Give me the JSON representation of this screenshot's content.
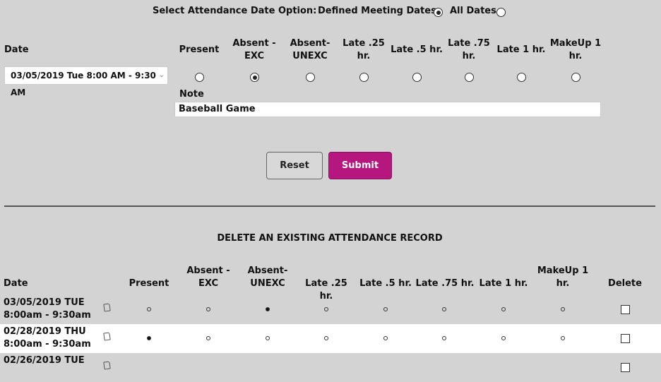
{
  "option_bar": {
    "label": "Select Attendance Date Option:",
    "defined_label": "Defined Meeting Dates",
    "all_label": "All Dates",
    "selected": "defined"
  },
  "entry": {
    "date_header": "Date",
    "columns": [
      "Present",
      "Absent - EXC",
      "Absent- UNEXC",
      "Late .25 hr.",
      "Late .5 hr.",
      "Late .75 hr.",
      "Late 1 hr.",
      "MakeUp 1 hr."
    ],
    "date_value": "03/05/2019 Tue 8:00 AM - 9:30 AM",
    "selected_index": 1,
    "note_label": "Note",
    "note_value": "Baseball Game"
  },
  "buttons": {
    "reset": "Reset",
    "submit": "Submit"
  },
  "delete_section": {
    "title": "DELETE AN EXISTING ATTENDANCE RECORD",
    "headers": {
      "date": "Date",
      "present": "Present",
      "absent_exc": "Absent - EXC",
      "absent_unexc": "Absent- UNEXC",
      "late25": "Late .25 hr.",
      "late5": "Late .5 hr.",
      "late75": "Late .75 hr.",
      "late1": "Late 1 hr.",
      "makeup": "MakeUp 1 hr.",
      "delete": "Delete"
    },
    "rows": [
      {
        "date": "03/05/2019 TUE",
        "time": "8:00am - 9:30am",
        "selected_index": 2
      },
      {
        "date": "02/28/2019 THU",
        "time": "8:00am - 9:30am",
        "selected_index": 0
      },
      {
        "date": "02/26/2019 TUE",
        "time": "",
        "selected_index": -1
      }
    ]
  },
  "colors": {
    "background": "#d3d3d3",
    "submit": "#b5177f",
    "row_alt": "#ffffff"
  }
}
